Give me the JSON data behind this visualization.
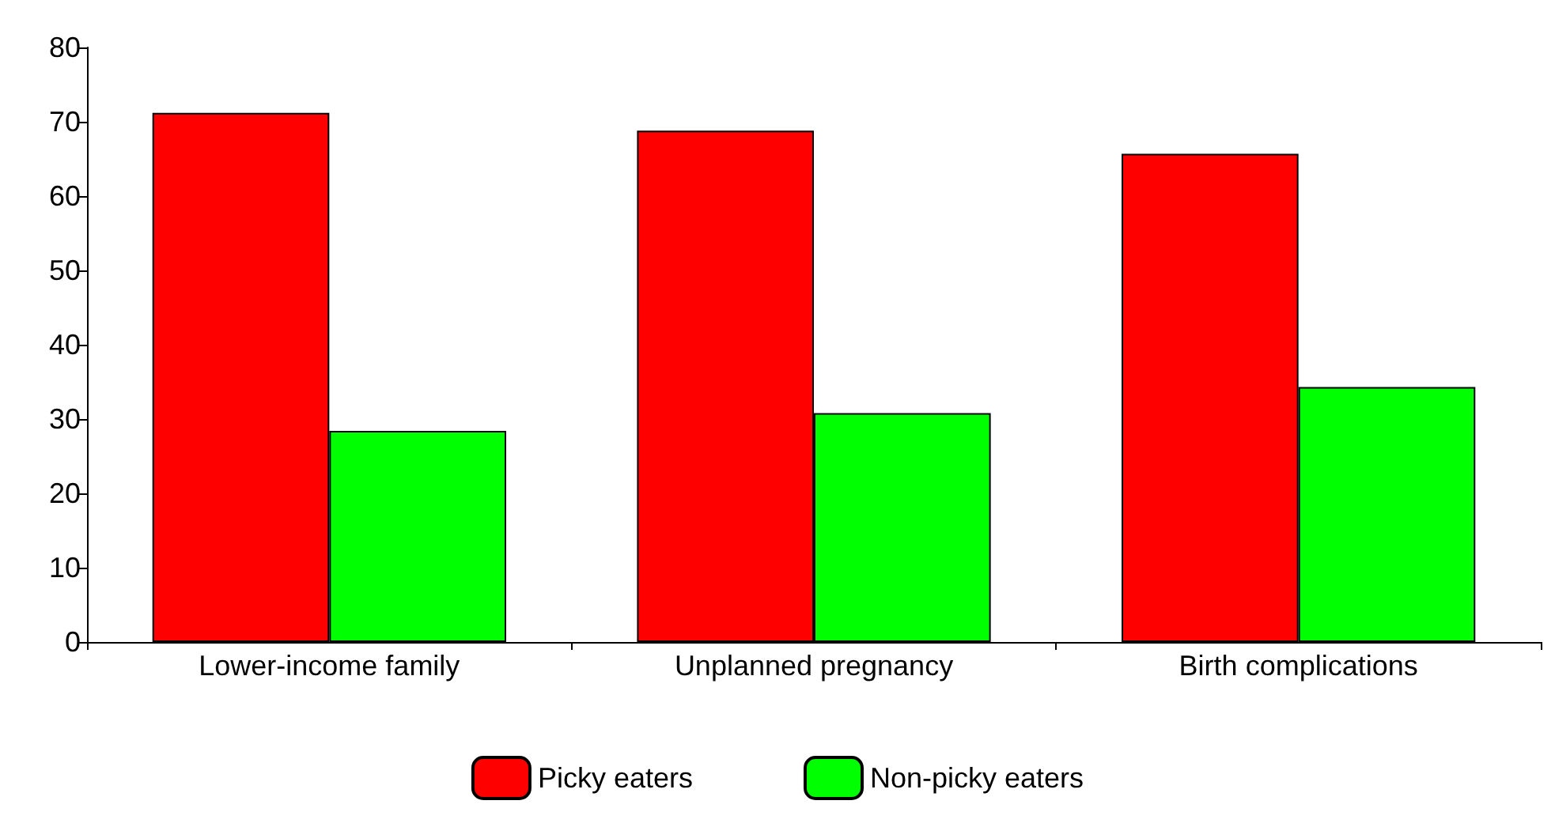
{
  "chart_data": {
    "type": "bar",
    "categories": [
      "Lower-income family",
      "Unplanned pregnancy",
      "Birth complications"
    ],
    "series": [
      {
        "name": "Picky eaters",
        "color": "#ff0000",
        "values": [
          71.2,
          68.8,
          65.7
        ]
      },
      {
        "name": "Non-picky eaters",
        "color": "#00ff00",
        "values": [
          28.4,
          30.8,
          34.3
        ]
      }
    ],
    "ylim": [
      0,
      80
    ],
    "yticks": [
      0,
      10,
      20,
      30,
      40,
      50,
      60,
      70,
      80
    ],
    "grid": false,
    "legend": "bottom"
  }
}
